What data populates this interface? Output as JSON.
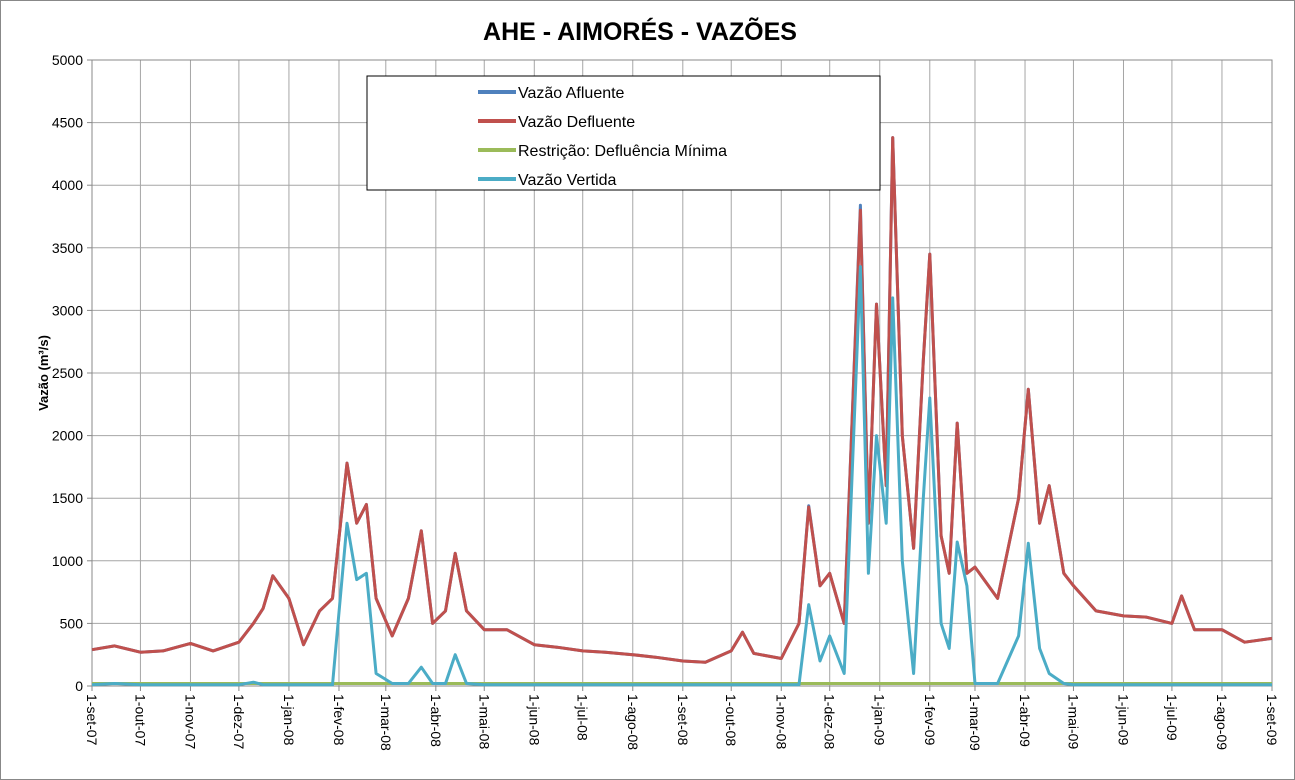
{
  "chart_data": {
    "type": "line",
    "title": "AHE - AIMORÉS - VAZÕES",
    "y_label": "Vazão (m³/s)",
    "x": [
      "2007-09-01",
      "2007-09-15",
      "2007-10-01",
      "2007-10-15",
      "2007-11-01",
      "2007-11-15",
      "2007-12-01",
      "2007-12-10",
      "2007-12-16",
      "2007-12-22",
      "2008-01-01",
      "2008-01-10",
      "2008-01-20",
      "2008-01-28",
      "2008-02-06",
      "2008-02-12",
      "2008-02-18",
      "2008-02-24",
      "2008-03-05",
      "2008-03-15",
      "2008-03-23",
      "2008-03-30",
      "2008-04-07",
      "2008-04-13",
      "2008-04-20",
      "2008-05-01",
      "2008-05-15",
      "2008-06-01",
      "2008-06-15",
      "2008-07-01",
      "2008-07-15",
      "2008-08-01",
      "2008-08-15",
      "2008-09-01",
      "2008-09-15",
      "2008-10-01",
      "2008-10-08",
      "2008-10-15",
      "2008-11-01",
      "2008-11-12",
      "2008-11-18",
      "2008-11-25",
      "2008-12-01",
      "2008-12-10",
      "2008-12-20",
      "2008-12-25",
      "2008-12-30",
      "2009-01-05",
      "2009-01-09",
      "2009-01-15",
      "2009-01-22",
      "2009-01-28",
      "2009-02-01",
      "2009-02-08",
      "2009-02-13",
      "2009-02-18",
      "2009-02-24",
      "2009-03-01",
      "2009-03-15",
      "2009-03-28",
      "2009-04-03",
      "2009-04-10",
      "2009-04-16",
      "2009-04-25",
      "2009-05-01",
      "2009-05-15",
      "2009-06-01",
      "2009-06-15",
      "2009-07-01",
      "2009-07-07",
      "2009-07-15",
      "2009-08-01",
      "2009-08-15",
      "2009-09-01"
    ],
    "series": [
      {
        "name": "Vazão Afluente",
        "color": "#4f81bd",
        "values": [
          290,
          320,
          270,
          280,
          340,
          280,
          350,
          500,
          620,
          880,
          700,
          330,
          600,
          700,
          1780,
          1300,
          1450,
          700,
          400,
          700,
          1240,
          500,
          600,
          1060,
          600,
          450,
          450,
          330,
          310,
          280,
          270,
          250,
          230,
          200,
          190,
          280,
          430,
          260,
          220,
          500,
          1440,
          800,
          900,
          500,
          3840,
          1300,
          3050,
          1600,
          4380,
          2000,
          1100,
          2600,
          3450,
          1200,
          900,
          2100,
          900,
          950,
          700,
          1500,
          2370,
          1300,
          1600,
          900,
          800,
          600,
          560,
          550,
          500,
          720,
          450,
          450,
          350,
          380
        ]
      },
      {
        "name": "Vazão Defluente",
        "color": "#c0504d",
        "values": [
          290,
          320,
          270,
          280,
          340,
          280,
          350,
          500,
          620,
          880,
          700,
          330,
          600,
          700,
          1780,
          1300,
          1450,
          700,
          400,
          700,
          1240,
          500,
          600,
          1060,
          600,
          450,
          450,
          330,
          310,
          280,
          270,
          250,
          230,
          200,
          190,
          280,
          430,
          260,
          220,
          500,
          1430,
          800,
          900,
          500,
          3800,
          1300,
          3050,
          1600,
          4380,
          2000,
          1100,
          2600,
          3450,
          1200,
          900,
          2100,
          900,
          950,
          700,
          1500,
          2370,
          1300,
          1600,
          900,
          800,
          600,
          560,
          550,
          500,
          720,
          450,
          450,
          350,
          380
        ]
      },
      {
        "name": "Restrição: Defluência Mínima",
        "color": "#9bbb59",
        "values": [
          20,
          20,
          20,
          20,
          20,
          20,
          20,
          20,
          20,
          20,
          20,
          20,
          20,
          20,
          20,
          20,
          20,
          20,
          20,
          20,
          20,
          20,
          20,
          20,
          20,
          20,
          20,
          20,
          20,
          20,
          20,
          20,
          20,
          20,
          20,
          20,
          20,
          20,
          20,
          20,
          20,
          20,
          20,
          20,
          20,
          20,
          20,
          20,
          20,
          20,
          20,
          20,
          20,
          20,
          20,
          20,
          20,
          20,
          20,
          20,
          20,
          20,
          20,
          20,
          20,
          20,
          20,
          20,
          20,
          20,
          20,
          20,
          20,
          20
        ]
      },
      {
        "name": "Vazão Vertida",
        "color": "#4bacc6",
        "values": [
          10,
          20,
          10,
          10,
          10,
          10,
          10,
          30,
          10,
          10,
          10,
          10,
          10,
          10,
          1300,
          850,
          900,
          100,
          20,
          20,
          150,
          20,
          20,
          250,
          20,
          10,
          10,
          10,
          10,
          10,
          10,
          10,
          10,
          10,
          10,
          10,
          10,
          10,
          10,
          10,
          650,
          200,
          400,
          100,
          3350,
          900,
          2000,
          1300,
          3100,
          1000,
          100,
          1500,
          2300,
          500,
          300,
          1150,
          800,
          20,
          20,
          400,
          1140,
          300,
          100,
          20,
          10,
          10,
          10,
          10,
          10,
          10,
          10,
          10,
          10,
          10
        ]
      }
    ],
    "xlim": [
      "2007-09-01",
      "2009-09-01"
    ],
    "xticks": [
      {
        "value": "2007-09-01",
        "label": "1-set-07"
      },
      {
        "value": "2007-10-01",
        "label": "1-out-07"
      },
      {
        "value": "2007-11-01",
        "label": "1-nov-07"
      },
      {
        "value": "2007-12-01",
        "label": "1-dez-07"
      },
      {
        "value": "2008-01-01",
        "label": "1-jan-08"
      },
      {
        "value": "2008-02-01",
        "label": "1-fev-08"
      },
      {
        "value": "2008-03-01",
        "label": "1-mar-08"
      },
      {
        "value": "2008-04-01",
        "label": "1-abr-08"
      },
      {
        "value": "2008-05-01",
        "label": "1-mai-08"
      },
      {
        "value": "2008-06-01",
        "label": "1-jun-08"
      },
      {
        "value": "2008-07-01",
        "label": "1-jul-08"
      },
      {
        "value": "2008-08-01",
        "label": "1-ago-08"
      },
      {
        "value": "2008-09-01",
        "label": "1-set-08"
      },
      {
        "value": "2008-10-01",
        "label": "1-out-08"
      },
      {
        "value": "2008-11-01",
        "label": "1-nov-08"
      },
      {
        "value": "2008-12-01",
        "label": "1-dez-08"
      },
      {
        "value": "2009-01-01",
        "label": "1-jan-09"
      },
      {
        "value": "2009-02-01",
        "label": "1-fev-09"
      },
      {
        "value": "2009-03-01",
        "label": "1-mar-09"
      },
      {
        "value": "2009-04-01",
        "label": "1-abr-09"
      },
      {
        "value": "2009-05-01",
        "label": "1-mai-09"
      },
      {
        "value": "2009-06-01",
        "label": "1-jun-09"
      },
      {
        "value": "2009-07-01",
        "label": "1-jul-09"
      },
      {
        "value": "2009-08-01",
        "label": "1-ago-09"
      },
      {
        "value": "2009-09-01",
        "label": "1-set-09"
      }
    ],
    "ylim": [
      0,
      5000
    ],
    "yticks": [
      0,
      500,
      1000,
      1500,
      2000,
      2500,
      3000,
      3500,
      4000,
      4500,
      5000
    ],
    "grid": true
  }
}
